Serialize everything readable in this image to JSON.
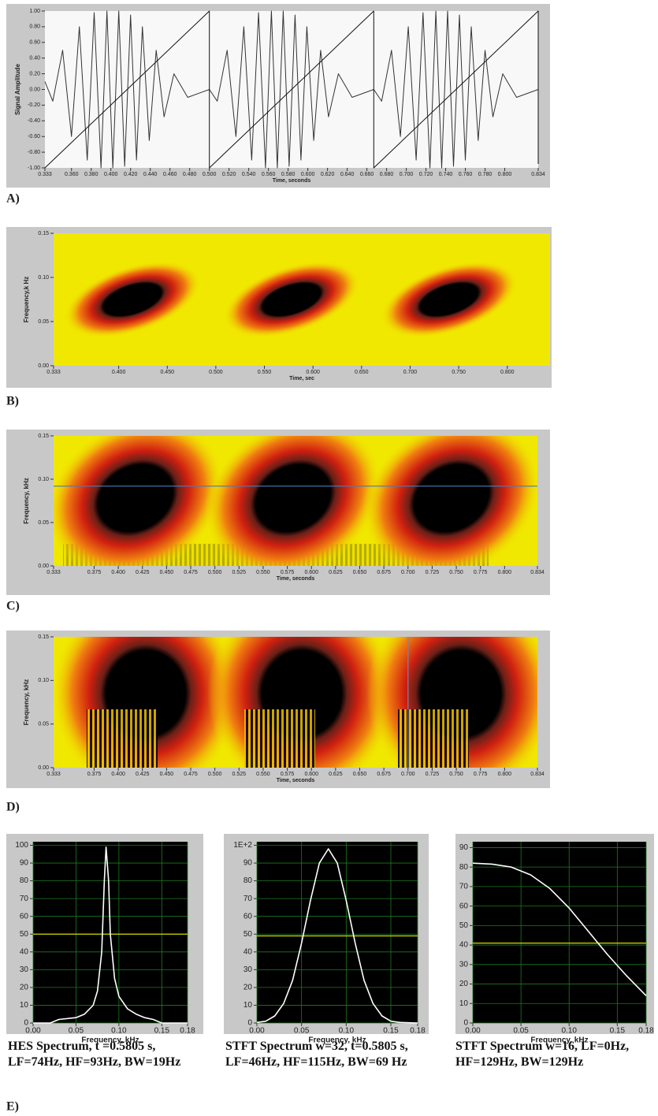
{
  "chart_data": [
    {
      "type": "line",
      "ylabel": "Signal Amplitude",
      "xlabel": "Time, seconds",
      "xlim": [
        0.333,
        0.834
      ],
      "ylim": [
        -1,
        1
      ],
      "xticks": [
        0.333,
        {
          "value": 0.36,
          "label": "0.360"
        },
        {
          "value": 0.38,
          "label": "0.380"
        },
        {
          "value": 0.4,
          "label": "0.400"
        },
        {
          "value": 0.42,
          "label": "0.420"
        },
        {
          "value": 0.44,
          "label": "0.440"
        },
        {
          "value": 0.46,
          "label": "0.460"
        },
        {
          "value": 0.48,
          "label": "0.480"
        },
        {
          "value": 0.5,
          "label": "0.500"
        },
        {
          "value": 0.52,
          "label": "0.520"
        },
        {
          "value": 0.54,
          "label": "0.540"
        },
        {
          "value": 0.56,
          "label": "0.560"
        },
        {
          "value": 0.58,
          "label": "0.580"
        },
        {
          "value": 0.6,
          "label": "0.600"
        },
        {
          "value": 0.62,
          "label": "0.620"
        },
        {
          "value": 0.64,
          "label": "0.640"
        },
        {
          "value": 0.66,
          "label": "0.660"
        },
        {
          "value": 0.68,
          "label": "0.680"
        },
        {
          "value": 0.7,
          "label": "0.700"
        },
        {
          "value": 0.72,
          "label": "0.720"
        },
        {
          "value": 0.74,
          "label": "0.740"
        },
        {
          "value": 0.76,
          "label": "0.760"
        },
        {
          "value": 0.78,
          "label": "0.780"
        },
        {
          "value": 0.8,
          "label": "0.800"
        },
        0.834
      ],
      "yticks": [
        {
          "value": -1,
          "label": "-1.00"
        },
        {
          "value": -0.8,
          "label": "-0.80"
        },
        {
          "value": -0.6,
          "label": "-0.60"
        },
        {
          "value": -0.4,
          "label": "-0.40"
        },
        {
          "value": -0.2,
          "label": "-0.20"
        },
        {
          "value": 0,
          "label": "0.00"
        },
        {
          "value": 0.2,
          "label": "0.20"
        },
        {
          "value": 0.4,
          "label": "0.40"
        },
        {
          "value": 0.6,
          "label": "0.60"
        },
        {
          "value": 0.8,
          "label": "0.80"
        },
        {
          "value": 1,
          "label": "1.00"
        }
      ],
      "series": [
        {
          "color": "#333333",
          "x": [
            0.333,
            0.341,
            0.351,
            0.36,
            0.368,
            0.376,
            0.383,
            0.39,
            0.396,
            0.402,
            0.408,
            0.414,
            0.42,
            0.426,
            0.432,
            0.439,
            0.446,
            0.454,
            0.464,
            0.478,
            0.5,
            0.508,
            0.518,
            0.527,
            0.535,
            0.543,
            0.55,
            0.557,
            0.563,
            0.569,
            0.575,
            0.581,
            0.587,
            0.593,
            0.599,
            0.606,
            0.613,
            0.621,
            0.631,
            0.645,
            0.667,
            0.675,
            0.685,
            0.694,
            0.702,
            0.71,
            0.717,
            0.724,
            0.73,
            0.736,
            0.742,
            0.748,
            0.754,
            0.76,
            0.766,
            0.773,
            0.78,
            0.788,
            0.798,
            0.812,
            0.834
          ],
          "values": [
            0.1,
            -0.15,
            0.5,
            -0.6,
            0.8,
            -0.9,
            0.98,
            -1,
            1,
            -1,
            1,
            -0.98,
            0.95,
            -0.9,
            0.8,
            -0.65,
            0.5,
            -0.35,
            0.2,
            -0.1,
            0,
            -0.15,
            0.5,
            -0.6,
            0.8,
            -0.9,
            0.98,
            -1,
            1,
            -1,
            1,
            -0.98,
            0.95,
            -0.9,
            0.8,
            -0.65,
            0.5,
            -0.35,
            0.2,
            -0.1,
            0,
            -0.15,
            0.5,
            -0.6,
            0.8,
            -0.9,
            0.98,
            -1,
            1,
            -1,
            1,
            -0.98,
            0.95,
            -0.9,
            0.8,
            -0.65,
            0.5,
            -0.35,
            0.2,
            -0.1,
            0
          ]
        },
        {
          "color": "#111111",
          "x": [
            0.333,
            0.5,
            0.5,
            0.667,
            0.667,
            0.834,
            0.834
          ],
          "values": [
            -1,
            1,
            -1,
            1,
            -1,
            1,
            -0.95
          ]
        }
      ]
    },
    {
      "type": "spectrogram",
      "ylabel": "Frequency,k Hz",
      "xlabel": "Time, sec",
      "xlim": [
        0.333,
        0.844
      ],
      "ylim": [
        0,
        0.15
      ],
      "xticks": [
        0.333,
        {
          "value": 0.4,
          "label": "0.400"
        },
        {
          "value": 0.45,
          "label": "0.450"
        },
        {
          "value": 0.5,
          "label": "0.500"
        },
        {
          "value": 0.55,
          "label": "0.550"
        },
        {
          "value": 0.6,
          "label": "0.600"
        },
        {
          "value": 0.65,
          "label": "0.650"
        },
        {
          "value": 0.7,
          "label": "0.700"
        },
        {
          "value": 0.75,
          "label": "0.750"
        },
        {
          "value": 0.8,
          "label": "0.800"
        }
      ],
      "yticks": [
        {
          "value": 0,
          "label": "0.00"
        },
        0.05,
        {
          "value": 0.1,
          "label": "0.10"
        },
        0.15
      ]
    },
    {
      "type": "spectrogram",
      "ylabel": "Frequency, kHz",
      "xlabel": "Time, seconds",
      "xlim": [
        0.333,
        0.834
      ],
      "ylim": [
        0,
        0.15
      ],
      "hline": 0.092,
      "line_color": "#4a7ab8",
      "xticks": [
        0.333,
        0.375,
        {
          "value": 0.4,
          "label": "0.400"
        },
        0.425,
        {
          "value": 0.45,
          "label": "0.450"
        },
        0.475,
        {
          "value": 0.5,
          "label": "0.500"
        },
        0.525,
        {
          "value": 0.55,
          "label": "0.550"
        },
        0.575,
        {
          "value": 0.6,
          "label": "0.600"
        },
        0.625,
        {
          "value": 0.65,
          "label": "0.650"
        },
        0.675,
        {
          "value": 0.7,
          "label": "0.700"
        },
        0.725,
        {
          "value": 0.75,
          "label": "0.750"
        },
        0.775,
        {
          "value": 0.8,
          "label": "0.800"
        },
        0.834
      ],
      "yticks": [
        {
          "value": 0,
          "label": "0.00"
        },
        0.05,
        {
          "value": 0.1,
          "label": "0.10"
        },
        0.15
      ]
    },
    {
      "type": "spectrogram",
      "ylabel": "Frequency, kHz",
      "xlabel": "Time, seconds",
      "xlim": [
        0.333,
        0.834
      ],
      "ylim": [
        0,
        0.15
      ],
      "vline": 0.7,
      "line_color": "#6a8ab8",
      "xticks": [
        0.333,
        0.375,
        {
          "value": 0.4,
          "label": "0.400"
        },
        0.425,
        {
          "value": 0.45,
          "label": "0.450"
        },
        0.475,
        {
          "value": 0.5,
          "label": "0.500"
        },
        0.525,
        {
          "value": 0.55,
          "label": "0.550"
        },
        0.575,
        {
          "value": 0.6,
          "label": "0.600"
        },
        0.625,
        {
          "value": 0.65,
          "label": "0.650"
        },
        0.675,
        {
          "value": 0.7,
          "label": "0.700"
        },
        0.725,
        {
          "value": 0.75,
          "label": "0.750"
        },
        0.775,
        {
          "value": 0.8,
          "label": "0.800"
        },
        0.834
      ],
      "yticks": [
        {
          "value": 0,
          "label": "0.00"
        },
        0.05,
        {
          "value": 0.1,
          "label": "0.10"
        },
        0.15
      ]
    },
    {
      "type": "line",
      "xlabel": "Frequency, kHz",
      "caption": "HES Spectrum,  t =0.5805 s, LF=74Hz, HF=93Hz, BW=19Hz",
      "grid": true,
      "hline": 50,
      "line_color": "#d8d800",
      "xlim": [
        0,
        0.18
      ],
      "ylim": [
        0,
        102
      ],
      "xticks": [
        {
          "value": 0,
          "label": "0.00"
        },
        0.05,
        {
          "value": 0.1,
          "label": "0.10"
        },
        0.15,
        0.18
      ],
      "yticks": [
        0,
        10,
        20,
        30,
        40,
        50,
        60,
        70,
        80,
        90,
        100
      ],
      "series": [
        {
          "color": "#ffffff",
          "x": [
            0,
            0.02,
            0.03,
            0.05,
            0.06,
            0.07,
            0.075,
            0.08,
            0.083,
            0.085,
            0.088,
            0.09,
            0.095,
            0.1,
            0.11,
            0.12,
            0.13,
            0.14,
            0.15,
            0.18
          ],
          "values": [
            0,
            0,
            2,
            3,
            5,
            10,
            18,
            40,
            80,
            99,
            80,
            50,
            25,
            15,
            8,
            5,
            3,
            2,
            0,
            0
          ]
        }
      ]
    },
    {
      "type": "line",
      "xlabel": "Frequency, kHz",
      "caption": "STFT Spectrum w=32, t=0.5805 s, LF=46Hz, HF=115Hz, BW=69 Hz",
      "grid": true,
      "hline": 49,
      "line_color": "#d8d800",
      "xlim": [
        0,
        0.18
      ],
      "ylim": [
        0,
        102
      ],
      "xticks": [
        {
          "value": 0,
          "label": "0.00"
        },
        0.05,
        {
          "value": 0.1,
          "label": "0.10"
        },
        0.15,
        0.18
      ],
      "yticks": [
        0,
        10,
        20,
        30,
        40,
        50,
        60,
        70,
        80,
        90,
        {
          "value": 100,
          "label": "1E+2"
        }
      ],
      "series": [
        {
          "color": "#ffffff",
          "x": [
            0,
            0.01,
            0.02,
            0.03,
            0.04,
            0.05,
            0.06,
            0.07,
            0.08,
            0.09,
            0.1,
            0.11,
            0.12,
            0.13,
            0.14,
            0.15,
            0.16,
            0.18
          ],
          "values": [
            0.3,
            1,
            4,
            11,
            24,
            45,
            69,
            90,
            98,
            90,
            69,
            45,
            24,
            11,
            4,
            1,
            0.3,
            0
          ]
        }
      ]
    },
    {
      "type": "line",
      "xlabel": "Frequency, kHz",
      "caption": "STFT Spectrum w=16, LF=0Hz, HF=129Hz, BW=129Hz",
      "grid": true,
      "hline": 41,
      "line_color": "#d8d800",
      "xlim": [
        0,
        0.18
      ],
      "ylim": [
        0,
        93
      ],
      "xticks": [
        {
          "value": 0,
          "label": "0.00"
        },
        0.05,
        {
          "value": 0.1,
          "label": "0.10"
        },
        0.15,
        0.18
      ],
      "yticks": [
        0,
        10,
        20,
        30,
        40,
        50,
        60,
        70,
        80,
        90
      ],
      "series": [
        {
          "color": "#ffffff",
          "x": [
            0,
            0.02,
            0.04,
            0.06,
            0.08,
            0.1,
            0.12,
            0.14,
            0.16,
            0.18
          ],
          "values": [
            82,
            81.5,
            80,
            76,
            69,
            59,
            47,
            35,
            24,
            14
          ]
        }
      ]
    }
  ],
  "panel_labels": [
    "A)",
    "B)",
    "C)",
    "D)",
    "E)"
  ]
}
